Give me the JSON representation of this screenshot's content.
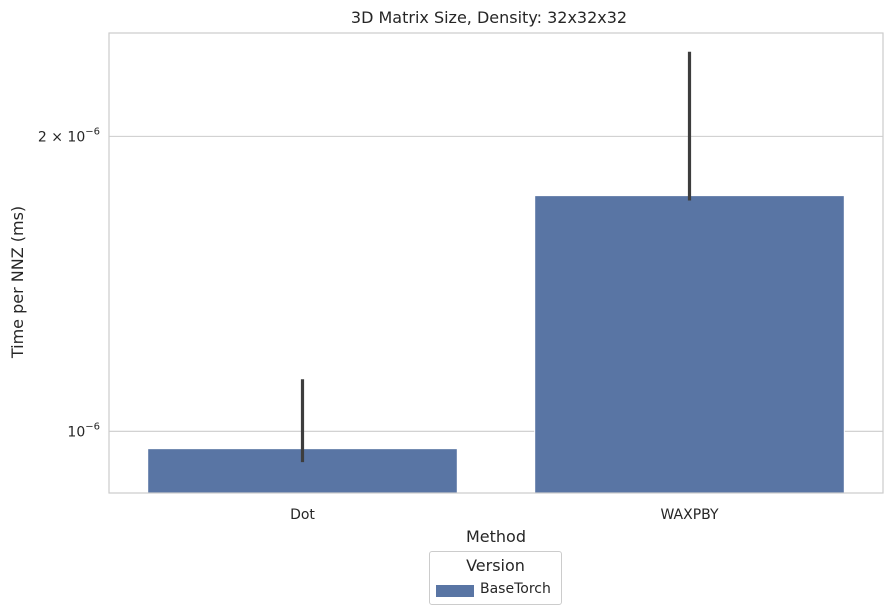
{
  "chart_data": {
    "type": "bar",
    "title": "3D Matrix Size, Density: 32x32x32",
    "xlabel": "Method",
    "ylabel": "Time per NNZ (ms)",
    "yscale": "log",
    "ylim": [
      8.65e-07,
      2.55e-06
    ],
    "yticks": [
      {
        "value": 1e-06,
        "label_base": "10",
        "label_exp": "−6"
      },
      {
        "value": 2e-06,
        "label_base": "2 × 10",
        "label_exp": "−6"
      }
    ],
    "categories": [
      "Dot",
      "WAXPBY"
    ],
    "series": [
      {
        "name": "BaseTorch",
        "color": "#5975a4",
        "values": [
          9.6e-07,
          1.74e-06
        ],
        "error_low": [
          9.3e-07,
          1.72e-06
        ],
        "error_high": [
          1.13e-06,
          2.44e-06
        ]
      }
    ],
    "grid": true,
    "legend": {
      "title": "Version",
      "placement": "bottom-center",
      "entries": [
        "BaseTorch"
      ]
    }
  }
}
